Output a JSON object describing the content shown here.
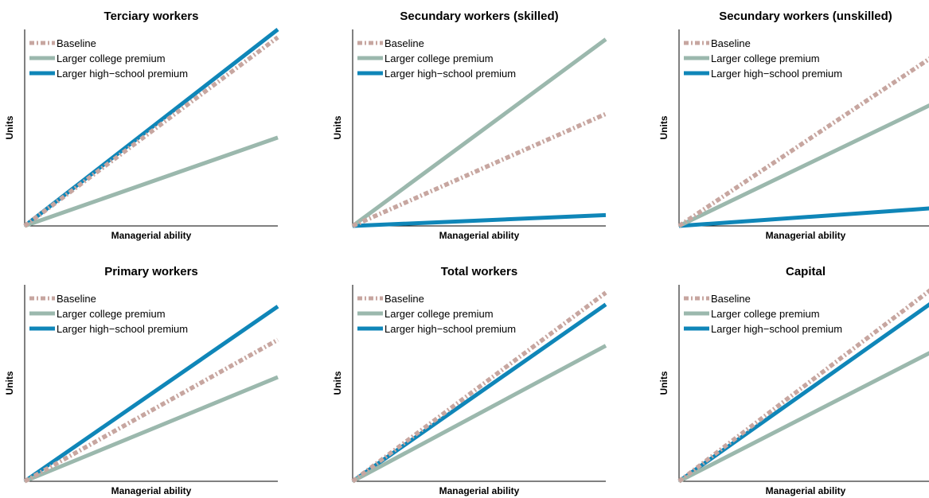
{
  "chart_data": [
    {
      "type": "line",
      "title": "Terciary workers",
      "xlabel": "Managerial ability",
      "ylabel": "Units",
      "xlim": [
        0,
        1
      ],
      "ylim": [
        0,
        1
      ],
      "legend": "top-left",
      "series": [
        {
          "name": "Baseline",
          "x": [
            0,
            1
          ],
          "y": [
            0,
            0.96
          ]
        },
        {
          "name": "Larger college premium",
          "x": [
            0,
            1
          ],
          "y": [
            0,
            0.45
          ]
        },
        {
          "name": "Larger high−school premium",
          "x": [
            0,
            1
          ],
          "y": [
            0,
            1.0
          ]
        }
      ]
    },
    {
      "type": "line",
      "title": "Secundary workers (skilled)",
      "xlabel": "Managerial ability",
      "ylabel": "Units",
      "xlim": [
        0,
        1
      ],
      "ylim": [
        0,
        1
      ],
      "legend": "top-left",
      "series": [
        {
          "name": "Baseline",
          "x": [
            0,
            1
          ],
          "y": [
            0,
            0.57
          ]
        },
        {
          "name": "Larger college premium",
          "x": [
            0,
            1
          ],
          "y": [
            0,
            0.95
          ]
        },
        {
          "name": "Larger high−school premium",
          "x": [
            0,
            1
          ],
          "y": [
            0,
            0.055
          ]
        }
      ]
    },
    {
      "type": "line",
      "title": "Secundary workers (unskilled)",
      "xlabel": "Managerial ability",
      "ylabel": "Units",
      "xlim": [
        0,
        1
      ],
      "ylim": [
        0,
        1
      ],
      "legend": "top-left",
      "series": [
        {
          "name": "Baseline",
          "x": [
            0,
            1
          ],
          "y": [
            0,
            0.86
          ]
        },
        {
          "name": "Larger college premium",
          "x": [
            0,
            1
          ],
          "y": [
            0,
            0.62
          ]
        },
        {
          "name": "Larger high−school premium",
          "x": [
            0,
            1
          ],
          "y": [
            0,
            0.09
          ]
        }
      ]
    },
    {
      "type": "line",
      "title": "Primary workers",
      "xlabel": "Managerial ability",
      "ylabel": "Units",
      "xlim": [
        0,
        1
      ],
      "ylim": [
        0,
        1
      ],
      "legend": "top-left",
      "series": [
        {
          "name": "Baseline",
          "x": [
            0,
            1
          ],
          "y": [
            0,
            0.72
          ]
        },
        {
          "name": "Larger college premium",
          "x": [
            0,
            1
          ],
          "y": [
            0,
            0.53
          ]
        },
        {
          "name": "Larger high−school premium",
          "x": [
            0,
            1
          ],
          "y": [
            0,
            0.89
          ]
        }
      ]
    },
    {
      "type": "line",
      "title": "Total workers",
      "xlabel": "Managerial ability",
      "ylabel": "Units",
      "xlim": [
        0,
        1
      ],
      "ylim": [
        0,
        1
      ],
      "legend": "top-left",
      "series": [
        {
          "name": "Baseline",
          "x": [
            0,
            1
          ],
          "y": [
            0,
            0.96
          ]
        },
        {
          "name": "Larger college premium",
          "x": [
            0,
            1
          ],
          "y": [
            0,
            0.69
          ]
        },
        {
          "name": "Larger high−school premium",
          "x": [
            0,
            1
          ],
          "y": [
            0,
            0.9
          ]
        }
      ]
    },
    {
      "type": "line",
      "title": "Capital",
      "xlabel": "Managerial ability",
      "ylabel": "Units",
      "xlim": [
        0,
        1
      ],
      "ylim": [
        0,
        1
      ],
      "legend": "top-left",
      "series": [
        {
          "name": "Baseline",
          "x": [
            0,
            1
          ],
          "y": [
            0,
            0.98
          ]
        },
        {
          "name": "Larger college premium",
          "x": [
            0,
            1
          ],
          "y": [
            0,
            0.66
          ]
        },
        {
          "name": "Larger high−school premium",
          "x": [
            0,
            1
          ],
          "y": [
            0,
            0.91
          ]
        }
      ]
    }
  ],
  "series_colors": {
    "Baseline": "#c7a6a0",
    "Larger college premium": "#9bb8ad",
    "Larger high−school premium": "#0f86b8"
  },
  "series_styles": {
    "Baseline": "dash-dot",
    "Larger college premium": "solid",
    "Larger high−school premium": "solid"
  }
}
